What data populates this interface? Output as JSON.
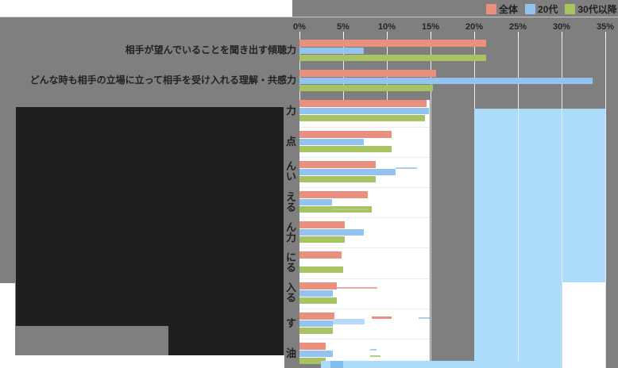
{
  "legend": {
    "items": [
      {
        "label": "全体",
        "color": "#E9907E"
      },
      {
        "label": "20代",
        "color": "#92C4EF"
      },
      {
        "label": "30代以降",
        "color": "#A8C362"
      }
    ]
  },
  "x_axis": {
    "ticks": [
      "0%",
      "5%",
      "10%",
      "15%",
      "20%",
      "25%",
      "30%",
      "35%"
    ]
  },
  "rows": [
    {
      "lines": [
        "相手が望んでいることを聞き出す傾聴力"
      ],
      "occluded": false
    },
    {
      "lines": [
        "どんな時も相手の立場に立って相手を受け入れる理解・共感力"
      ],
      "occluded": false
    },
    {
      "lines": [
        "力"
      ],
      "occluded": true
    },
    {
      "lines": [
        "点"
      ],
      "occluded": true
    },
    {
      "lines": [
        "ん",
        "い"
      ],
      "occluded": true
    },
    {
      "lines": [
        "え",
        "る"
      ],
      "occluded": true
    },
    {
      "lines": [
        "ん",
        "力"
      ],
      "occluded": true
    },
    {
      "lines": [
        "に",
        "る"
      ],
      "occluded": true
    },
    {
      "lines": [
        "入",
        "る"
      ],
      "occluded": true
    },
    {
      "lines": [
        "す"
      ],
      "occluded": true
    },
    {
      "lines": [
        "油"
      ],
      "occluded": true
    }
  ],
  "chart_data": {
    "type": "bar",
    "orientation": "horizontal",
    "unit": "%",
    "xlim": [
      0,
      35
    ],
    "grid": true,
    "legend_position": "top-right",
    "categories": [
      "相手が望んでいることを聞き出す傾聴力",
      "どんな時も相手の立場に立って相手を受け入れる理解・共感力",
      "…力",
      "…点",
      "…ん…い",
      "…え…る",
      "…ん…力",
      "…に…る",
      "…入…る",
      "…す",
      "…油"
    ],
    "series": [
      {
        "name": "全体",
        "color": "#E9907E",
        "values": [
          21.4,
          15.6,
          14.5,
          10.5,
          8.7,
          7.8,
          5.2,
          4.8,
          4.3,
          4.0,
          3.0
        ]
      },
      {
        "name": "20代",
        "color": "#92C4EF",
        "values": [
          7.4,
          33.5,
          14.8,
          7.4,
          11.0,
          3.7,
          7.4,
          0,
          3.8,
          3.8,
          3.8
        ]
      },
      {
        "name": "30代以降",
        "color": "#A8C362",
        "values": [
          21.4,
          15.3,
          14.4,
          10.5,
          8.7,
          8.3,
          5.2,
          5.0,
          4.3,
          3.8,
          3.0
        ]
      }
    ],
    "note": "Category labels of rows 3-11 are hidden behind a black redaction box; only the last character of each label is visible."
  },
  "colors": {
    "background": "#7F7F7F",
    "white_panel": "#FFFFFF",
    "redaction_black": "#1F1F1F",
    "highlight_blue": "#ADDCFB",
    "scroll_thumb_blue": "#7FBEEF",
    "gridline_on_gray": "#FFFFFF",
    "gridline_on_white": "#DCDCDC",
    "gridline_on_blue": "#DFF0FC",
    "row_separator": "#ECECEC",
    "axis_text": "#262626",
    "label_text": "#222222"
  }
}
